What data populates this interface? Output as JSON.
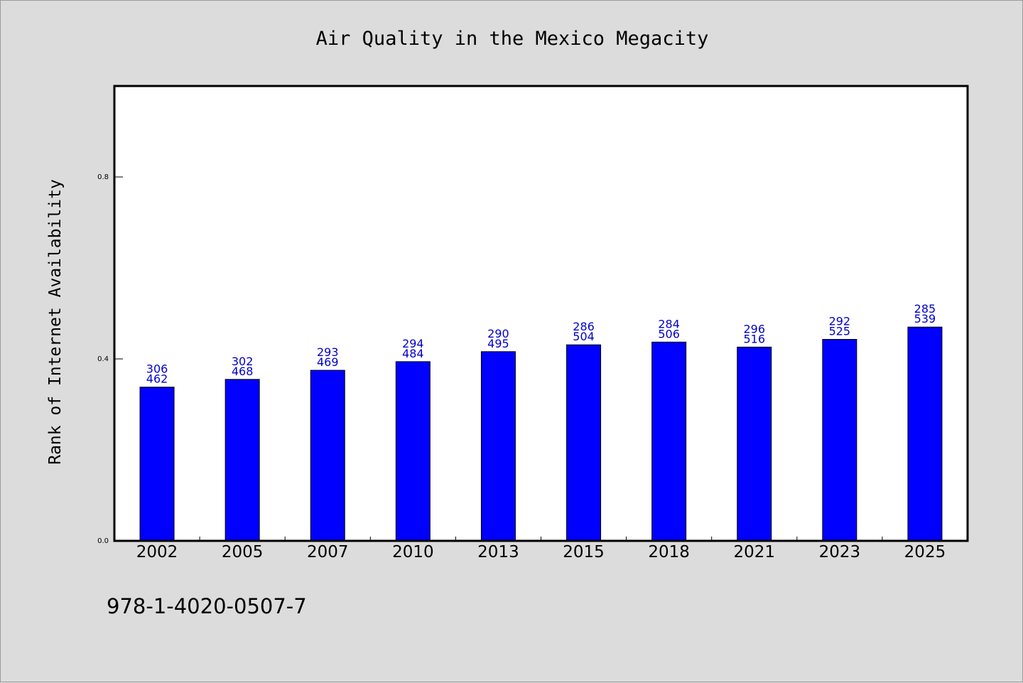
{
  "footer": "978-1-4020-0507-7",
  "colors": {
    "background": "#dcdcdc",
    "plot_area": "#ffffff",
    "bar": "#0000ff",
    "data_label": "#0000cc"
  },
  "chart_data": {
    "type": "bar",
    "title": "Air Quality in the Mexico Megacity",
    "xlabel": "",
    "ylabel": "Rank of Internet Availability",
    "categories": [
      "2002",
      "2005",
      "2007",
      "2010",
      "2013",
      "2015",
      "2018",
      "2021",
      "2023",
      "2025"
    ],
    "series": [
      {
        "values": [
          0.338,
          0.355,
          0.375,
          0.394,
          0.416,
          0.431,
          0.437,
          0.426,
          0.443,
          0.47
        ]
      }
    ],
    "data_labels": [
      [
        "306",
        "462"
      ],
      [
        "302",
        "468"
      ],
      [
        "293",
        "469"
      ],
      [
        "294",
        "484"
      ],
      [
        "290",
        "495"
      ],
      [
        "286",
        "504"
      ],
      [
        "284",
        "506"
      ],
      [
        "296",
        "516"
      ],
      [
        "292",
        "525"
      ],
      [
        "285",
        "539"
      ]
    ],
    "yticks": [
      "0.0",
      "0.4",
      "0.8"
    ],
    "ylim": [
      0,
      1.0
    ],
    "grid": false,
    "legend": "none"
  }
}
